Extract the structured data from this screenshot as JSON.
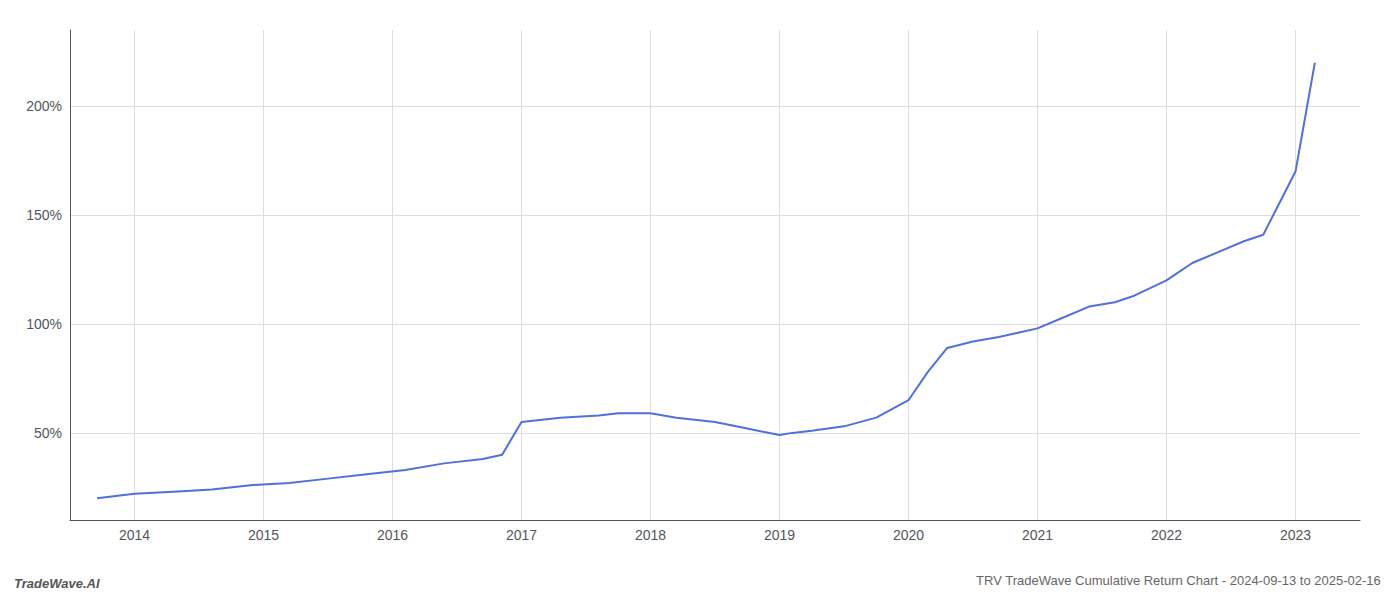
{
  "chart_data": {
    "type": "line",
    "title": "TRV TradeWave Cumulative Return Chart - 2024-09-13 to 2025-02-16",
    "annotations": [
      "TradeWave.AI"
    ],
    "x": [
      2013.71,
      2014.0,
      2014.3,
      2014.6,
      2014.9,
      2015.2,
      2015.5,
      2015.8,
      2016.1,
      2016.4,
      2016.7,
      2016.85,
      2017.0,
      2017.3,
      2017.6,
      2017.75,
      2018.0,
      2018.2,
      2018.5,
      2018.75,
      2019.0,
      2019.1,
      2019.25,
      2019.5,
      2019.75,
      2020.0,
      2020.15,
      2020.3,
      2020.5,
      2020.7,
      2020.85,
      2021.0,
      2021.2,
      2021.4,
      2021.6,
      2021.75,
      2022.0,
      2022.2,
      2022.4,
      2022.6,
      2022.75,
      2023.0,
      2023.15
    ],
    "values": [
      20,
      22,
      23,
      24,
      26,
      27,
      29,
      31,
      33,
      36,
      38,
      40,
      55,
      57,
      58,
      59,
      59,
      57,
      55,
      52,
      49,
      50,
      51,
      53,
      57,
      65,
      78,
      89,
      92,
      94,
      96,
      98,
      103,
      108,
      110,
      113,
      120,
      128,
      133,
      138,
      141,
      170,
      220
    ],
    "xlim": [
      2013.5,
      2023.5
    ],
    "xticks": [
      2014,
      2015,
      2016,
      2017,
      2018,
      2019,
      2020,
      2021,
      2022,
      2023
    ],
    "ylim": [
      10,
      235
    ],
    "yticks": [
      {
        "value": 50,
        "label": "50%"
      },
      {
        "value": 100,
        "label": "100%"
      },
      {
        "value": 150,
        "label": "150%"
      },
      {
        "value": 200,
        "label": "200%"
      }
    ],
    "grid": true
  }
}
